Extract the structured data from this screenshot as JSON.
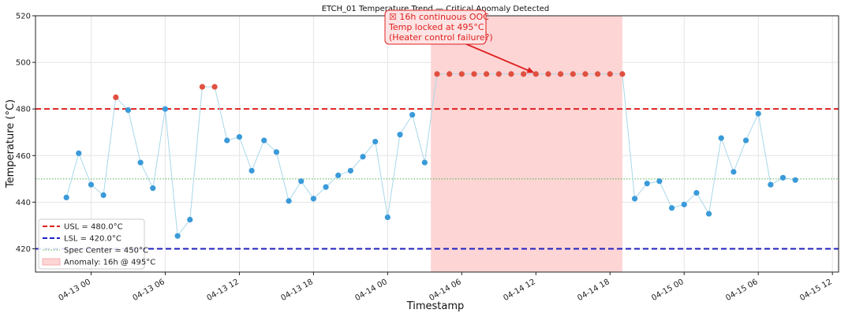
{
  "chart_data": {
    "type": "line",
    "title": "ETCH_01 Temperature Trend — Critical Anomaly Detected",
    "xlabel": "Timestamp",
    "ylabel": "Temperature (°C)",
    "ylim": [
      410,
      520
    ],
    "xlim": [
      "2024-04-12 19:30",
      "2024-04-15 12:30"
    ],
    "yticks": [
      420,
      440,
      460,
      480,
      500,
      520
    ],
    "xticks": [
      "04-13 00",
      "04-13 06",
      "04-13 12",
      "04-13 18",
      "04-14 00",
      "04-14 06",
      "04-14 12",
      "04-14 18",
      "04-15 00",
      "04-15 06",
      "04-15 12"
    ],
    "x_tick_dates": [
      "2024-04-13 00:00",
      "2024-04-13 06:00",
      "2024-04-13 12:00",
      "2024-04-13 18:00",
      "2024-04-14 00:00",
      "2024-04-14 06:00",
      "2024-04-14 12:00",
      "2024-04-14 18:00",
      "2024-04-15 00:00",
      "2024-04-15 06:00",
      "2024-04-15 12:00"
    ],
    "grid": true,
    "legend_position": "bottom-left",
    "reference_lines": [
      {
        "label": "USL = 480.0°C",
        "value": 480,
        "color": "#e02020",
        "style": "dashed"
      },
      {
        "label": "LSL = 420.0°C",
        "value": 420,
        "color": "#1f1fbf",
        "style": "dashed"
      },
      {
        "label": "Spec Center = 450°C",
        "value": 450,
        "color": "#4caf50",
        "style": "dotted"
      }
    ],
    "anomaly_region": {
      "label": "Anomaly: 16h @ 495°C",
      "x_start": "2024-04-14 03:30",
      "x_end": "2024-04-14 19:00",
      "color": "#fdd5d5"
    },
    "annotation": {
      "lines": [
        "☒ 16h continuous OOC",
        "Temp locked at 495°C",
        "(Heater control failure?)"
      ],
      "target": [
        "2024-04-14 12:00",
        495
      ]
    },
    "series": [
      {
        "line_color": "#a8d8ea",
        "normal_color": "#3a9ad9",
        "ooc_color": "#e05040",
        "points": [
          [
            "2024-04-12 22:00",
            442.0,
            "normal"
          ],
          [
            "2024-04-12 23:00",
            461.0,
            "normal"
          ],
          [
            "2024-04-13 00:00",
            447.5,
            "normal"
          ],
          [
            "2024-04-13 01:00",
            443.0,
            "normal"
          ],
          [
            "2024-04-13 02:00",
            485.0,
            "ooc"
          ],
          [
            "2024-04-13 03:00",
            479.5,
            "normal"
          ],
          [
            "2024-04-13 04:00",
            457.0,
            "normal"
          ],
          [
            "2024-04-13 05:00",
            446.0,
            "normal"
          ],
          [
            "2024-04-13 06:00",
            480.0,
            "normal"
          ],
          [
            "2024-04-13 07:00",
            425.5,
            "normal"
          ],
          [
            "2024-04-13 08:00",
            432.5,
            "normal"
          ],
          [
            "2024-04-13 09:00",
            489.5,
            "ooc"
          ],
          [
            "2024-04-13 10:00",
            489.5,
            "ooc"
          ],
          [
            "2024-04-13 11:00",
            466.5,
            "normal"
          ],
          [
            "2024-04-13 12:00",
            468.0,
            "normal"
          ],
          [
            "2024-04-13 13:00",
            453.5,
            "normal"
          ],
          [
            "2024-04-13 14:00",
            466.5,
            "normal"
          ],
          [
            "2024-04-13 15:00",
            461.5,
            "normal"
          ],
          [
            "2024-04-13 16:00",
            440.5,
            "normal"
          ],
          [
            "2024-04-13 17:00",
            449.0,
            "normal"
          ],
          [
            "2024-04-13 18:00",
            441.5,
            "normal"
          ],
          [
            "2024-04-13 19:00",
            446.5,
            "normal"
          ],
          [
            "2024-04-13 20:00",
            451.5,
            "normal"
          ],
          [
            "2024-04-13 21:00",
            453.5,
            "normal"
          ],
          [
            "2024-04-13 22:00",
            459.5,
            "normal"
          ],
          [
            "2024-04-13 23:00",
            466.0,
            "normal"
          ],
          [
            "2024-04-14 00:00",
            433.5,
            "normal"
          ],
          [
            "2024-04-14 01:00",
            469.0,
            "normal"
          ],
          [
            "2024-04-14 02:00",
            477.5,
            "normal"
          ],
          [
            "2024-04-14 03:00",
            457.0,
            "normal"
          ],
          [
            "2024-04-14 04:00",
            495.0,
            "ooc"
          ],
          [
            "2024-04-14 05:00",
            495.0,
            "ooc"
          ],
          [
            "2024-04-14 06:00",
            495.0,
            "ooc"
          ],
          [
            "2024-04-14 07:00",
            495.0,
            "ooc"
          ],
          [
            "2024-04-14 08:00",
            495.0,
            "ooc"
          ],
          [
            "2024-04-14 09:00",
            495.0,
            "ooc"
          ],
          [
            "2024-04-14 10:00",
            495.0,
            "ooc"
          ],
          [
            "2024-04-14 11:00",
            495.0,
            "ooc"
          ],
          [
            "2024-04-14 12:00",
            495.0,
            "ooc"
          ],
          [
            "2024-04-14 13:00",
            495.0,
            "ooc"
          ],
          [
            "2024-04-14 14:00",
            495.0,
            "ooc"
          ],
          [
            "2024-04-14 15:00",
            495.0,
            "ooc"
          ],
          [
            "2024-04-14 16:00",
            495.0,
            "ooc"
          ],
          [
            "2024-04-14 17:00",
            495.0,
            "ooc"
          ],
          [
            "2024-04-14 18:00",
            495.0,
            "ooc"
          ],
          [
            "2024-04-14 19:00",
            495.0,
            "ooc"
          ],
          [
            "2024-04-14 20:00",
            441.5,
            "normal"
          ],
          [
            "2024-04-14 21:00",
            448.0,
            "normal"
          ],
          [
            "2024-04-14 22:00",
            449.0,
            "normal"
          ],
          [
            "2024-04-14 23:00",
            437.5,
            "normal"
          ],
          [
            "2024-04-15 00:00",
            439.0,
            "normal"
          ],
          [
            "2024-04-15 01:00",
            444.0,
            "normal"
          ],
          [
            "2024-04-15 02:00",
            435.0,
            "normal"
          ],
          [
            "2024-04-15 03:00",
            467.5,
            "normal"
          ],
          [
            "2024-04-15 04:00",
            453.0,
            "normal"
          ],
          [
            "2024-04-15 05:00",
            466.5,
            "normal"
          ],
          [
            "2024-04-15 06:00",
            478.0,
            "normal"
          ],
          [
            "2024-04-15 07:00",
            447.5,
            "normal"
          ],
          [
            "2024-04-15 08:00",
            450.5,
            "normal"
          ],
          [
            "2024-04-15 09:00",
            449.5,
            "normal"
          ]
        ]
      }
    ]
  }
}
